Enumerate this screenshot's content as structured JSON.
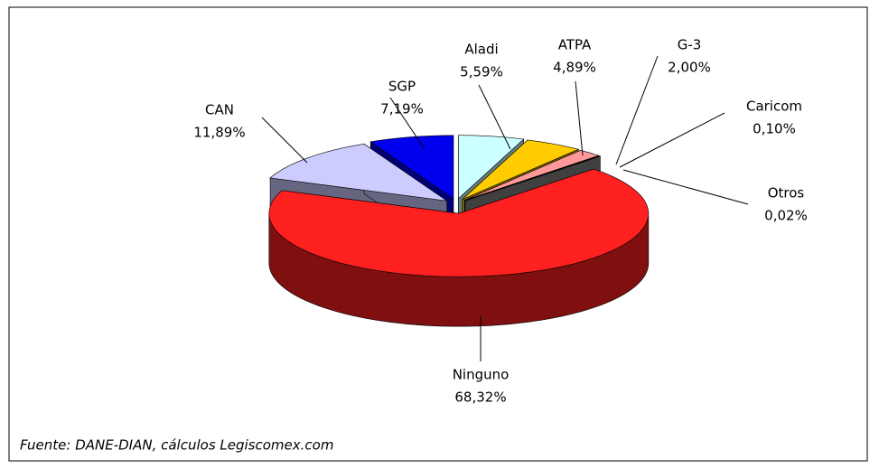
{
  "chart_data": {
    "type": "pie",
    "categories": [
      "Aladi",
      "ATPA",
      "G-3",
      "Caricom",
      "Otros",
      "Ninguno",
      "CAN",
      "SGP"
    ],
    "values": [
      5.59,
      4.89,
      2.0,
      0.1,
      0.02,
      68.32,
      11.89,
      7.19
    ],
    "value_labels": [
      "5,59%",
      "4,89%",
      "2,00%",
      "0,10%",
      "0,02%",
      "68,32%",
      "11,89%",
      "7,19%"
    ],
    "colors": [
      "#ccffff",
      "#ffcc00",
      "#ff9999",
      "#993366",
      "#808080",
      "#ff2020",
      "#ccccff",
      "#0000ee"
    ],
    "note": "Fuente: DANE-DIAN, cálculos Legiscomex.com"
  }
}
